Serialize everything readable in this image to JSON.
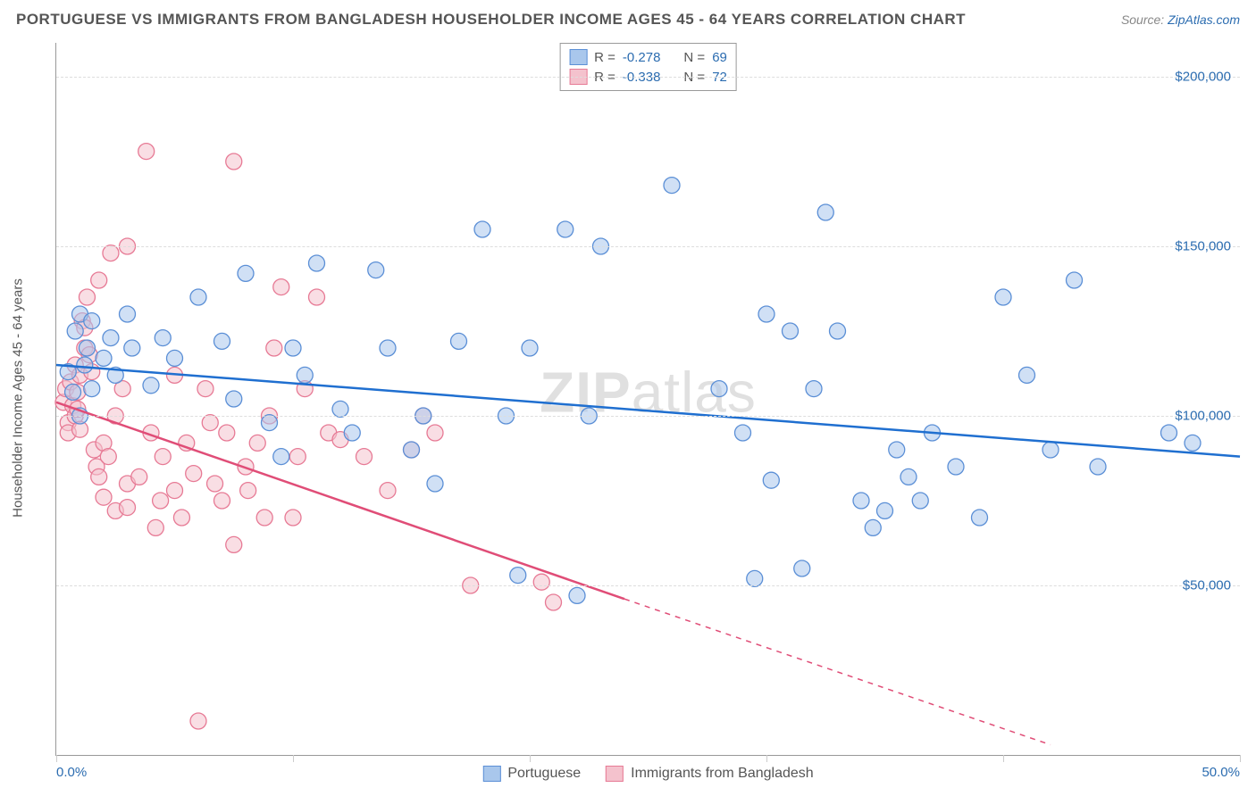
{
  "title": "PORTUGUESE VS IMMIGRANTS FROM BANGLADESH HOUSEHOLDER INCOME AGES 45 - 64 YEARS CORRELATION CHART",
  "source_label": "Source:",
  "source_name": "ZipAtlas.com",
  "yaxis_label": "Householder Income Ages 45 - 64 years",
  "watermark_zip": "ZIP",
  "watermark_atlas": "atlas",
  "chart": {
    "type": "scatter",
    "xlim": [
      0,
      50
    ],
    "ylim": [
      0,
      210000
    ],
    "xtick_labels": {
      "0": "0.0%",
      "50": "50.0%"
    },
    "xtick_marks": [
      0,
      10,
      20,
      30,
      40,
      50
    ],
    "yticks": [
      50000,
      100000,
      150000,
      200000
    ],
    "ytick_labels": [
      "$50,000",
      "$100,000",
      "$150,000",
      "$200,000"
    ],
    "grid_color": "#dddddd",
    "background_color": "#ffffff",
    "axis_color": "#999999",
    "tick_label_color": "#2b6cb0",
    "marker_radius": 9,
    "marker_opacity": 0.55,
    "line_width": 2.5
  },
  "series": [
    {
      "name": "Portuguese",
      "legend_label": "Portuguese",
      "color_fill": "#a9c7ec",
      "color_stroke": "#5b8fd6",
      "line_color": "#1f6fd0",
      "R": "-0.278",
      "N": "69",
      "trend": {
        "x1": 0,
        "y1": 115000,
        "x2": 50,
        "y2": 88000
      },
      "points": [
        [
          0.5,
          113000
        ],
        [
          0.7,
          107000
        ],
        [
          0.8,
          125000
        ],
        [
          1.0,
          100000
        ],
        [
          1.0,
          130000
        ],
        [
          1.2,
          115000
        ],
        [
          1.3,
          120000
        ],
        [
          1.5,
          128000
        ],
        [
          1.5,
          108000
        ],
        [
          2.0,
          117000
        ],
        [
          2.3,
          123000
        ],
        [
          2.5,
          112000
        ],
        [
          3.0,
          130000
        ],
        [
          3.2,
          120000
        ],
        [
          4.0,
          109000
        ],
        [
          4.5,
          123000
        ],
        [
          5.0,
          117000
        ],
        [
          6.0,
          135000
        ],
        [
          7.0,
          122000
        ],
        [
          7.5,
          105000
        ],
        [
          8.0,
          142000
        ],
        [
          9.0,
          98000
        ],
        [
          9.5,
          88000
        ],
        [
          10.0,
          120000
        ],
        [
          10.5,
          112000
        ],
        [
          11.0,
          145000
        ],
        [
          12.0,
          102000
        ],
        [
          12.5,
          95000
        ],
        [
          13.5,
          143000
        ],
        [
          14.0,
          120000
        ],
        [
          15.0,
          90000
        ],
        [
          15.5,
          100000
        ],
        [
          16.0,
          80000
        ],
        [
          17.0,
          122000
        ],
        [
          18.0,
          155000
        ],
        [
          19.0,
          100000
        ],
        [
          19.5,
          53000
        ],
        [
          20.0,
          120000
        ],
        [
          21.5,
          155000
        ],
        [
          22.0,
          47000
        ],
        [
          22.5,
          100000
        ],
        [
          23.0,
          150000
        ],
        [
          26.0,
          168000
        ],
        [
          28.0,
          108000
        ],
        [
          29.0,
          95000
        ],
        [
          29.5,
          52000
        ],
        [
          30.0,
          130000
        ],
        [
          30.2,
          81000
        ],
        [
          31.0,
          125000
        ],
        [
          31.5,
          55000
        ],
        [
          32.0,
          108000
        ],
        [
          32.5,
          160000
        ],
        [
          33.0,
          125000
        ],
        [
          34.0,
          75000
        ],
        [
          34.5,
          67000
        ],
        [
          35.0,
          72000
        ],
        [
          35.5,
          90000
        ],
        [
          36.0,
          82000
        ],
        [
          36.5,
          75000
        ],
        [
          37.0,
          95000
        ],
        [
          38.0,
          85000
        ],
        [
          39.0,
          70000
        ],
        [
          40.0,
          135000
        ],
        [
          41.0,
          112000
        ],
        [
          42.0,
          90000
        ],
        [
          43.0,
          140000
        ],
        [
          44.0,
          85000
        ],
        [
          47.0,
          95000
        ],
        [
          48.0,
          92000
        ]
      ]
    },
    {
      "name": "Immigrants from Bangladesh",
      "legend_label": "Immigrants from Bangladesh",
      "color_fill": "#f4c2cd",
      "color_stroke": "#e77a95",
      "line_color": "#e04d77",
      "R": "-0.338",
      "N": "72",
      "trend": {
        "x1": 0,
        "y1": 104000,
        "x2": 24,
        "y2": 46000
      },
      "trend_dash": {
        "x1": 24,
        "y1": 46000,
        "x2": 42,
        "y2": 3000
      },
      "points": [
        [
          0.3,
          104000
        ],
        [
          0.4,
          108000
        ],
        [
          0.5,
          98000
        ],
        [
          0.5,
          95000
        ],
        [
          0.6,
          110000
        ],
        [
          0.7,
          103000
        ],
        [
          0.8,
          100000
        ],
        [
          0.8,
          115000
        ],
        [
          0.9,
          107000
        ],
        [
          0.9,
          102000
        ],
        [
          1.0,
          96000
        ],
        [
          1.0,
          112000
        ],
        [
          1.1,
          128000
        ],
        [
          1.2,
          120000
        ],
        [
          1.2,
          126000
        ],
        [
          1.3,
          135000
        ],
        [
          1.4,
          118000
        ],
        [
          1.5,
          113000
        ],
        [
          1.6,
          90000
        ],
        [
          1.7,
          85000
        ],
        [
          1.8,
          140000
        ],
        [
          1.8,
          82000
        ],
        [
          2.0,
          92000
        ],
        [
          2.0,
          76000
        ],
        [
          2.2,
          88000
        ],
        [
          2.3,
          148000
        ],
        [
          2.5,
          72000
        ],
        [
          2.5,
          100000
        ],
        [
          2.8,
          108000
        ],
        [
          3.0,
          150000
        ],
        [
          3.0,
          80000
        ],
        [
          3.0,
          73000
        ],
        [
          3.5,
          82000
        ],
        [
          3.8,
          178000
        ],
        [
          4.0,
          95000
        ],
        [
          4.2,
          67000
        ],
        [
          4.4,
          75000
        ],
        [
          4.5,
          88000
        ],
        [
          5.0,
          78000
        ],
        [
          5.0,
          112000
        ],
        [
          5.3,
          70000
        ],
        [
          5.5,
          92000
        ],
        [
          5.8,
          83000
        ],
        [
          6.0,
          10000
        ],
        [
          6.3,
          108000
        ],
        [
          6.5,
          98000
        ],
        [
          6.7,
          80000
        ],
        [
          7.0,
          75000
        ],
        [
          7.2,
          95000
        ],
        [
          7.5,
          62000
        ],
        [
          7.5,
          175000
        ],
        [
          8.0,
          85000
        ],
        [
          8.1,
          78000
        ],
        [
          8.5,
          92000
        ],
        [
          8.8,
          70000
        ],
        [
          9.0,
          100000
        ],
        [
          9.2,
          120000
        ],
        [
          9.5,
          138000
        ],
        [
          10.0,
          70000
        ],
        [
          10.2,
          88000
        ],
        [
          10.5,
          108000
        ],
        [
          11.0,
          135000
        ],
        [
          11.5,
          95000
        ],
        [
          12.0,
          93000
        ],
        [
          13.0,
          88000
        ],
        [
          14.0,
          78000
        ],
        [
          15.0,
          90000
        ],
        [
          15.5,
          100000
        ],
        [
          16.0,
          95000
        ],
        [
          17.5,
          50000
        ],
        [
          20.5,
          51000
        ],
        [
          21.0,
          45000
        ]
      ]
    }
  ],
  "stats_legend_labels": {
    "R": "R =",
    "N": "N ="
  }
}
